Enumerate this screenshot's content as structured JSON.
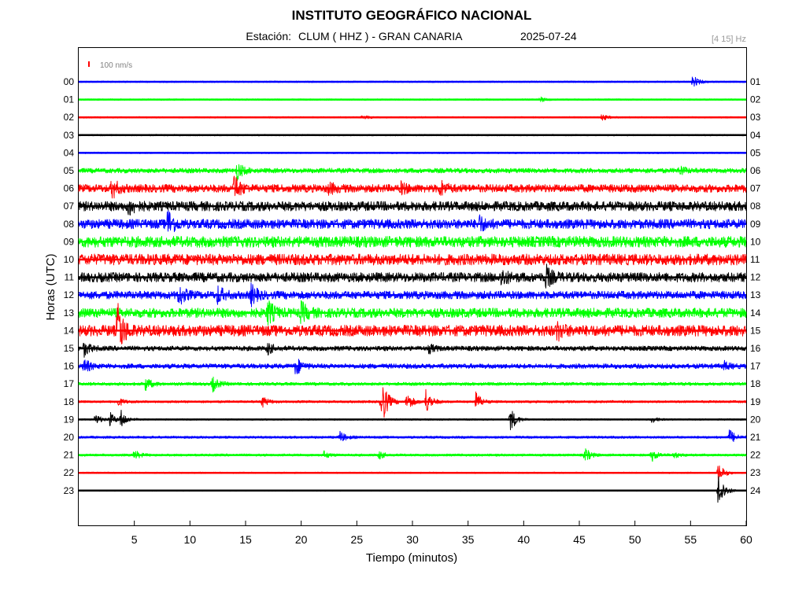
{
  "header": {
    "title": "INSTITUTO GEOGRÁFICO NACIONAL",
    "station_label": "Estación:",
    "station": "CLUM ( HHZ ) - GRAN CANARIA",
    "date": "2025-07-24",
    "filter": "[4 15] Hz"
  },
  "chart_data": {
    "type": "line",
    "title": "INSTITUTO GEOGRÁFICO NACIONAL",
    "xlabel": "Tiempo (minutos)",
    "ylabel": "Horas (UTC)",
    "xlim": [
      0,
      60
    ],
    "x_ticks": [
      5,
      10,
      15,
      20,
      25,
      30,
      35,
      40,
      45,
      50,
      55,
      60
    ],
    "left_hour_labels": [
      "00",
      "01",
      "02",
      "03",
      "04",
      "05",
      "06",
      "07",
      "08",
      "09",
      "10",
      "11",
      "12",
      "13",
      "14",
      "15",
      "16",
      "17",
      "18",
      "19",
      "20",
      "21",
      "22",
      "23"
    ],
    "right_hour_labels": [
      "01",
      "02",
      "03",
      "04",
      "05",
      "06",
      "07",
      "08",
      "09",
      "10",
      "11",
      "12",
      "13",
      "14",
      "15",
      "16",
      "17",
      "18",
      "19",
      "20",
      "21",
      "22",
      "23",
      "24"
    ],
    "scale_bar": "100 nm/s",
    "trace_colors": [
      "#0000ff",
      "#00ff00",
      "#ff0000",
      "#000000"
    ],
    "noise_amplitude": [
      1,
      1,
      1,
      1,
      1,
      3,
      5,
      6,
      6,
      7,
      7,
      6,
      5,
      6,
      7,
      3,
      3,
      2,
      1.5,
      1,
      1.5,
      1.5,
      1,
      0.8
    ],
    "events": [
      {
        "hour": 0,
        "minute": 55.2,
        "amplitude": 8
      },
      {
        "hour": 1,
        "minute": 41.5,
        "amplitude": 3
      },
      {
        "hour": 2,
        "minute": 25.5,
        "amplitude": 3
      },
      {
        "hour": 2,
        "minute": 47,
        "amplitude": 4
      },
      {
        "hour": 5,
        "minute": 14.2,
        "amplitude": 12
      },
      {
        "hour": 5,
        "minute": 54,
        "amplitude": 6
      },
      {
        "hour": 6,
        "minute": 3,
        "amplitude": 12
      },
      {
        "hour": 6,
        "minute": 14,
        "amplitude": 16
      },
      {
        "hour": 6,
        "minute": 22.5,
        "amplitude": 6
      },
      {
        "hour": 6,
        "minute": 29,
        "amplitude": 6
      },
      {
        "hour": 6,
        "minute": 32.5,
        "amplitude": 9
      },
      {
        "hour": 7,
        "minute": 4.5,
        "amplitude": 10
      },
      {
        "hour": 8,
        "minute": 8,
        "amplitude": 18
      },
      {
        "hour": 8,
        "minute": 36,
        "amplitude": 9
      },
      {
        "hour": 11,
        "minute": 38,
        "amplitude": 10
      },
      {
        "hour": 11,
        "minute": 42,
        "amplitude": 13
      },
      {
        "hour": 12,
        "minute": 9,
        "amplitude": 13
      },
      {
        "hour": 12,
        "minute": 12.5,
        "amplitude": 10
      },
      {
        "hour": 12,
        "minute": 15.5,
        "amplitude": 12
      },
      {
        "hour": 13,
        "minute": 17,
        "amplitude": 15
      },
      {
        "hour": 13,
        "minute": 20,
        "amplitude": 12
      },
      {
        "hour": 14,
        "minute": 3.5,
        "amplitude": 35
      },
      {
        "hour": 14,
        "minute": 43,
        "amplitude": 10
      },
      {
        "hour": 15,
        "minute": 0.5,
        "amplitude": 9
      },
      {
        "hour": 15,
        "minute": 17,
        "amplitude": 7
      },
      {
        "hour": 15,
        "minute": 31.5,
        "amplitude": 5
      },
      {
        "hour": 16,
        "minute": 0.5,
        "amplitude": 9
      },
      {
        "hour": 16,
        "minute": 19.5,
        "amplitude": 12
      },
      {
        "hour": 16,
        "minute": 58,
        "amplitude": 5
      },
      {
        "hour": 17,
        "minute": 6,
        "amplitude": 9
      },
      {
        "hour": 17,
        "minute": 12,
        "amplitude": 10
      },
      {
        "hour": 18,
        "minute": 3.5,
        "amplitude": 6
      },
      {
        "hour": 18,
        "minute": 16.5,
        "amplitude": 7
      },
      {
        "hour": 18,
        "minute": 27.2,
        "amplitude": 34
      },
      {
        "hour": 18,
        "minute": 29.5,
        "amplitude": 12
      },
      {
        "hour": 18,
        "minute": 31.2,
        "amplitude": 16
      },
      {
        "hour": 18,
        "minute": 35.7,
        "amplitude": 12
      },
      {
        "hour": 19,
        "minute": 1.5,
        "amplitude": 7
      },
      {
        "hour": 19,
        "minute": 2.8,
        "amplitude": 9
      },
      {
        "hour": 19,
        "minute": 3.8,
        "amplitude": 11
      },
      {
        "hour": 19,
        "minute": 38.8,
        "amplitude": 16
      },
      {
        "hour": 19,
        "minute": 51.5,
        "amplitude": 4
      },
      {
        "hour": 20,
        "minute": 23.5,
        "amplitude": 7
      },
      {
        "hour": 20,
        "minute": 58.5,
        "amplitude": 10
      },
      {
        "hour": 21,
        "minute": 5,
        "amplitude": 6
      },
      {
        "hour": 21,
        "minute": 22,
        "amplitude": 5
      },
      {
        "hour": 21,
        "minute": 27,
        "amplitude": 5
      },
      {
        "hour": 21,
        "minute": 45.5,
        "amplitude": 9
      },
      {
        "hour": 21,
        "minute": 51.5,
        "amplitude": 8
      },
      {
        "hour": 21,
        "minute": 53.5,
        "amplitude": 4
      },
      {
        "hour": 22,
        "minute": 57.5,
        "amplitude": 12
      },
      {
        "hour": 23,
        "minute": 57.5,
        "amplitude": 25
      }
    ]
  }
}
